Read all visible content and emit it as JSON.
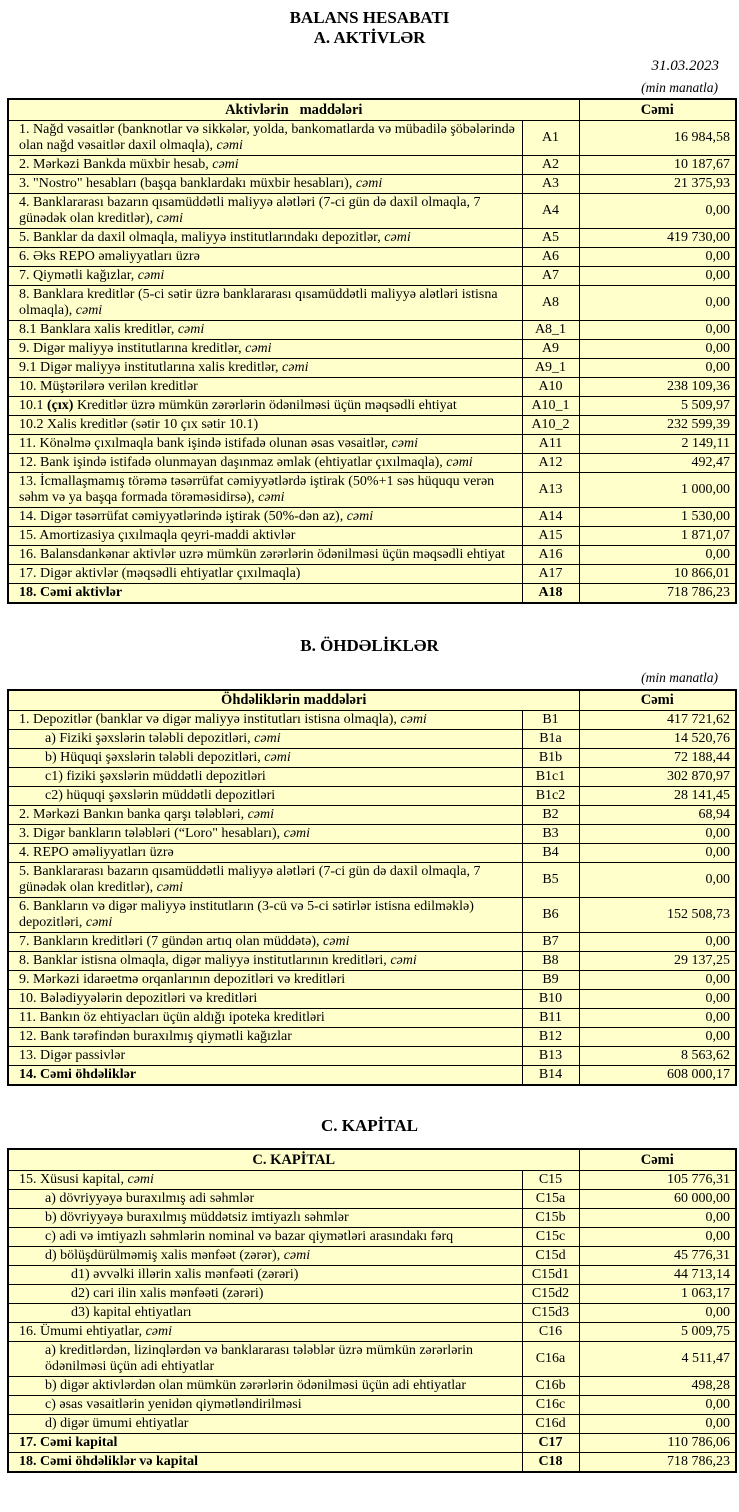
{
  "page": {
    "title": "BALANS HESABATI",
    "subtitle": "A. AKTİVLƏR",
    "date": "31.03.2023",
    "unit_note_a": "(min manatla)",
    "unit_note_b": "(min manatla)"
  },
  "colors": {
    "cell_background": "#FFFFCC",
    "border": "#000000",
    "page_background": "#FFFFFF",
    "text": "#000000"
  },
  "sections": [
    {
      "key": "A",
      "header_items": "Aktivlərin   maddələri",
      "header_total": "Cəmi",
      "rows": [
        {
          "parts": [
            {
              "t": "1. Nağd vəsaitlər (banknotlar və sikkələr, yolda, bankomatlarda və mübadilə şöbələrində olan nağd vəsaitlər daxil olmaqla), "
            },
            {
              "t": "cəmi",
              "i": true
            }
          ],
          "code": "A1",
          "value": "16 984,58",
          "indent": 0
        },
        {
          "parts": [
            {
              "t": "2. Mərkəzi Bankda müxbir hesab, "
            },
            {
              "t": "cəmi",
              "i": true
            }
          ],
          "code": "A2",
          "value": "10 187,67",
          "indent": 0
        },
        {
          "parts": [
            {
              "t": "3. \"Nostro\" hesabları (başqa banklardakı müxbir hesabları), "
            },
            {
              "t": "cəmi",
              "i": true
            }
          ],
          "code": "A3",
          "value": "21 375,93",
          "indent": 0
        },
        {
          "parts": [
            {
              "t": "4. Banklararası bazarın qısamüddətli maliyyə alətləri (7-ci gün də daxil olmaqla, 7 günədək olan kreditlər), "
            },
            {
              "t": "cəmi",
              "i": true
            }
          ],
          "code": "A4",
          "value": "0,00",
          "indent": 0
        },
        {
          "parts": [
            {
              "t": "5. Banklar da daxil olmaqla, maliyyə institutlarındakı depozitlər, "
            },
            {
              "t": "cəmi",
              "i": true
            }
          ],
          "code": "A5",
          "value": "419 730,00",
          "indent": 0
        },
        {
          "parts": [
            {
              "t": "6. Əks REPO əməliyyatları üzrə"
            }
          ],
          "code": "A6",
          "value": "0,00",
          "indent": 0
        },
        {
          "parts": [
            {
              "t": "7. Qiymətli kağızlar, "
            },
            {
              "t": "cəmi",
              "i": true
            }
          ],
          "code": "A7",
          "value": "0,00",
          "indent": 0
        },
        {
          "parts": [
            {
              "t": "8. Banklara kreditlər (5-ci sətir üzrə banklararası qısamüddətli maliyyə alətləri istisna olmaqla), "
            },
            {
              "t": "cəmi",
              "i": true
            }
          ],
          "code": "A8",
          "value": "0,00",
          "indent": 0
        },
        {
          "parts": [
            {
              "t": "8.1 Banklara xalis kreditlər, "
            },
            {
              "t": "cəmi",
              "i": true
            }
          ],
          "code": "A8_1",
          "value": "0,00",
          "indent": 0
        },
        {
          "parts": [
            {
              "t": "9. Digər maliyyə institutlarına kreditlər, "
            },
            {
              "t": "cəmi",
              "i": true
            }
          ],
          "code": "A9",
          "value": "0,00",
          "indent": 0
        },
        {
          "parts": [
            {
              "t": "9.1 Digər maliyyə institutlarına xalis kreditlər, "
            },
            {
              "t": "cəmi",
              "i": true
            }
          ],
          "code": "A9_1",
          "value": "0,00",
          "indent": 0
        },
        {
          "parts": [
            {
              "t": "10. Müştərilərə verilən kreditlər"
            }
          ],
          "code": "A10",
          "value": "238 109,36",
          "indent": 0
        },
        {
          "parts": [
            {
              "t": "10.1 "
            },
            {
              "t": "(çıx)",
              "b": true
            },
            {
              "t": " Kreditlər üzrə mümkün zərərlərin ödənilməsi üçün məqsədli ehtiyat"
            }
          ],
          "code": "A10_1",
          "value": "5 509,97",
          "indent": 0
        },
        {
          "parts": [
            {
              "t": "10.2 Xalis kreditlər (sətir 10 çıx sətir 10.1)"
            }
          ],
          "code": "A10_2",
          "value": "232 599,39",
          "indent": 0
        },
        {
          "parts": [
            {
              "t": "11. Könəlmə çıxılmaqla bank işində istifadə olunan əsas vəsaitlər, "
            },
            {
              "t": "cəmi",
              "i": true
            }
          ],
          "code": "A11",
          "value": "2 149,11",
          "indent": 0
        },
        {
          "parts": [
            {
              "t": "12. Bank işində istifadə olunmayan daşınmaz əmlak (ehtiyatlar çıxılmaqla), "
            },
            {
              "t": "cəmi",
              "i": true
            }
          ],
          "code": "A12",
          "value": "492,47",
          "indent": 0
        },
        {
          "parts": [
            {
              "t": "13. İcmallaşmamış törəmə təsərrüfat cəmiyyətlərdə iştirak (50%+1 səs hüququ verən səhm və ya başqa formada törəməsidirsə), "
            },
            {
              "t": "cəmi",
              "i": true
            }
          ],
          "code": "A13",
          "value": "1 000,00",
          "indent": 0
        },
        {
          "parts": [
            {
              "t": "14. Digər təsərrüfat cəmiyyətlərində iştirak (50%-dən az), "
            },
            {
              "t": "cəmi",
              "i": true
            }
          ],
          "code": "A14",
          "value": "1 530,00",
          "indent": 0
        },
        {
          "parts": [
            {
              "t": "15. Amortizasiya çıxılmaqla qeyri-maddi aktivlər"
            }
          ],
          "code": "A15",
          "value": "1 871,07",
          "indent": 0
        },
        {
          "parts": [
            {
              "t": "16. Balansdankənar aktivlər uzrə mümkün zərərlərin ödənilməsi üçün məqsədli ehtiyat"
            }
          ],
          "code": "A16",
          "value": "0,00",
          "indent": 0
        },
        {
          "parts": [
            {
              "t": "17. Digər aktivlər (məqsədli ehtiyatlar çıxılmaqla)"
            }
          ],
          "code": "A17",
          "value": "10 866,01",
          "indent": 0
        },
        {
          "parts": [
            {
              "t": "18. Cəmi aktivlər",
              "b": true
            }
          ],
          "code": "A18",
          "code_bold": true,
          "value": "718 786,23",
          "indent": 0
        }
      ]
    },
    {
      "key": "B",
      "heading": "B. ÖHDƏLİKLƏR",
      "header_items": "Öhdəliklərin maddələri",
      "header_total": "Cəmi",
      "rows": [
        {
          "parts": [
            {
              "t": "1. Depozitlər (banklar və digər maliyyə institutları istisna olmaqla), "
            },
            {
              "t": "cəmi",
              "i": true
            }
          ],
          "code": "B1",
          "value": "417 721,62",
          "indent": 0
        },
        {
          "parts": [
            {
              "t": "a)  Fiziki şəxslərin tələbli depozitləri, "
            },
            {
              "t": "cəmi",
              "i": true
            }
          ],
          "code": "B1a",
          "value": "14 520,76",
          "indent": 1
        },
        {
          "parts": [
            {
              "t": "b) Hüquqi şəxslərin tələbli depozitləri, "
            },
            {
              "t": "cəmi",
              "i": true
            }
          ],
          "code": "B1b",
          "value": "72 188,44",
          "indent": 1
        },
        {
          "parts": [
            {
              "t": "c1) fiziki şəxslərin müddətli depozitləri"
            }
          ],
          "code": "B1c1",
          "value": "302 870,97",
          "indent": 1
        },
        {
          "parts": [
            {
              "t": "c2) hüquqi şəxslərin müddətli depozitləri"
            }
          ],
          "code": "B1c2",
          "value": "28 141,45",
          "indent": 1
        },
        {
          "parts": [
            {
              "t": "2. Mərkəzi Bankın banka qarşı tələbləri, "
            },
            {
              "t": "cəmi",
              "i": true
            }
          ],
          "code": "B2",
          "value": "68,94",
          "indent": 0
        },
        {
          "parts": [
            {
              "t": "3. Digər bankların tələbləri (“Loro\" hesabları), "
            },
            {
              "t": "cəmi",
              "i": true
            }
          ],
          "code": "B3",
          "value": "0,00",
          "indent": 0
        },
        {
          "parts": [
            {
              "t": "4. REPO əməliyyatları  üzrə"
            }
          ],
          "code": "B4",
          "value": "0,00",
          "indent": 0
        },
        {
          "parts": [
            {
              "t": "5. Banklararası bazarın qısamüddətli maliyyə alətləri (7-ci gün də daxil olmaqla, 7 günədək olan kreditlər), "
            },
            {
              "t": "cəmi",
              "i": true
            }
          ],
          "code": "B5",
          "value": "0,00",
          "indent": 0
        },
        {
          "parts": [
            {
              "t": "6. Bankların və digər maliyyə institutların (3-cü və 5-ci sətirlər istisna edilməklə) depozitləri, "
            },
            {
              "t": "cəmi",
              "i": true
            }
          ],
          "code": "B6",
          "value": "152 508,73",
          "indent": 0
        },
        {
          "parts": [
            {
              "t": "7. Bankların kreditləri (7 gündən artıq olan müddətə), "
            },
            {
              "t": "cəmi",
              "i": true
            }
          ],
          "code": "B7",
          "value": "0,00",
          "indent": 0
        },
        {
          "parts": [
            {
              "t": "8. Banklar istisna olmaqla, digər maliyyə institutlarının kreditləri, "
            },
            {
              "t": "cəmi",
              "i": true
            }
          ],
          "code": "B8",
          "value": "29 137,25",
          "indent": 0
        },
        {
          "parts": [
            {
              "t": "9. Mərkəzi idarəetmə orqanlarının depozitləri və kreditləri"
            }
          ],
          "code": "B9",
          "value": "0,00",
          "indent": 0
        },
        {
          "parts": [
            {
              "t": "10. Bələdiyyələrin depozitləri və kreditləri"
            }
          ],
          "code": "B10",
          "value": "0,00",
          "indent": 0
        },
        {
          "parts": [
            {
              "t": "11. Bankın öz ehtiyacları üçün aldığı ipoteka kreditləri"
            }
          ],
          "code": "B11",
          "value": "0,00",
          "indent": 0
        },
        {
          "parts": [
            {
              "t": "12. Bank tərəfindən buraxılmış qiymətli kağızlar"
            }
          ],
          "code": "B12",
          "value": "0,00",
          "indent": 0
        },
        {
          "parts": [
            {
              "t": "13. Digər passivlər"
            }
          ],
          "code": "B13",
          "value": "8 563,62",
          "indent": 0
        },
        {
          "parts": [
            {
              "t": "14. Cəmi öhdəliklər",
              "b": true
            }
          ],
          "code": "B14",
          "value": "608 000,17",
          "indent": 0
        }
      ]
    },
    {
      "key": "C",
      "heading": "C. KAPİTAL",
      "header_items": "C. KAPİTAL",
      "header_total": "Cəmi",
      "rows": [
        {
          "parts": [
            {
              "t": "15. Xüsusi kapital, "
            },
            {
              "t": "cəmi",
              "i": true
            }
          ],
          "code": "C15",
          "value": "105 776,31",
          "indent": 0
        },
        {
          "parts": [
            {
              "t": "a) dövriyyəyə buraxılmış adi səhmlər"
            }
          ],
          "code": "C15a",
          "value": "60 000,00",
          "indent": 1
        },
        {
          "parts": [
            {
              "t": "b) dövriyyəyə buraxılmış müddətsiz imtiyazlı səhmlər"
            }
          ],
          "code": "C15b",
          "value": "0,00",
          "indent": 1
        },
        {
          "parts": [
            {
              "t": "c) adi və imtiyazlı səhmlərin nominal və bazar qiymətləri arasındakı fərq"
            }
          ],
          "code": "C15c",
          "value": "0,00",
          "indent": 1
        },
        {
          "parts": [
            {
              "t": "d) bölüşdürülməmiş xalis mənfəət (zərər), "
            },
            {
              "t": "cəmi",
              "i": true
            }
          ],
          "code": "C15d",
          "value": "45 776,31",
          "indent": 1
        },
        {
          "parts": [
            {
              "t": "d1) əvvəlki illərin xalis mənfəəti (zərəri)"
            }
          ],
          "code": "C15d1",
          "value": "44 713,14",
          "indent": 2
        },
        {
          "parts": [
            {
              "t": "d2) cari ilin xalis mənfəəti (zərəri)"
            }
          ],
          "code": "C15d2",
          "value": "1 063,17",
          "indent": 2
        },
        {
          "parts": [
            {
              "t": "d3) kapital ehtiyatları"
            }
          ],
          "code": "C15d3",
          "value": "0,00",
          "indent": 2
        },
        {
          "parts": [
            {
              "t": "16. Ümumi ehtiyatlar, "
            },
            {
              "t": "cəmi",
              "i": true
            }
          ],
          "code": "C16",
          "value": "5 009,75",
          "indent": 0
        },
        {
          "parts": [
            {
              "t": "a) kreditlərdən, lizinqlərdən və banklararası  tələblər üzrə mümkün zərərlərin ödənilməsi üçün adi ehtiyatlar"
            }
          ],
          "code": "C16a",
          "value": "4 511,47",
          "indent": 1
        },
        {
          "parts": [
            {
              "t": "b) digər aktivlərdən olan mümkün zərərlərin ödənilməsi üçün adi ehtiyatlar"
            }
          ],
          "code": "C16b",
          "value": "498,28",
          "indent": 1
        },
        {
          "parts": [
            {
              "t": "c) əsas vəsaitlərin yenidən qiymətləndirilməsi"
            }
          ],
          "code": "C16c",
          "value": "0,00",
          "indent": 1
        },
        {
          "parts": [
            {
              "t": "d) digər ümumi ehtiyatlar"
            }
          ],
          "code": "C16d",
          "value": "0,00",
          "indent": 1
        },
        {
          "parts": [
            {
              "t": "17. Cəmi kapital",
              "b": true
            }
          ],
          "code": "C17",
          "code_bold": true,
          "value": "110 786,06",
          "indent": 0
        },
        {
          "parts": [
            {
              "t": "18. Cəmi öhdəliklər və kapital",
              "b": true
            }
          ],
          "code": "C18",
          "code_bold": true,
          "value": "718 786,23",
          "indent": 0
        }
      ]
    }
  ]
}
